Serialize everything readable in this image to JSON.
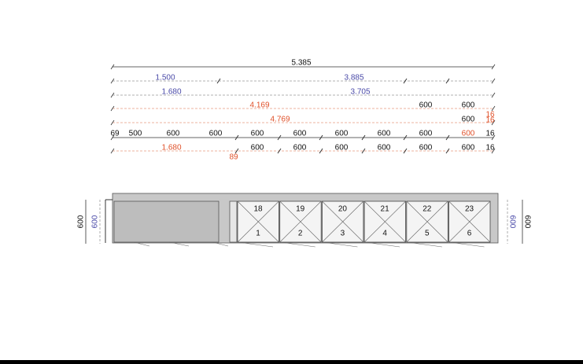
{
  "dimensions": {
    "rows": [
      [
        "5.385"
      ],
      [
        "1.500",
        "3.885"
      ],
      [
        "1.680",
        "3.705"
      ],
      [
        "4.169",
        "600",
        "600",
        "16"
      ],
      [
        "4.769",
        "600",
        "16"
      ],
      [
        "69",
        "500",
        "600",
        "600",
        "600",
        "600",
        "600",
        "600",
        "600",
        "600",
        "16"
      ],
      [
        "1.680",
        "89",
        "600",
        "600",
        "600",
        "600",
        "600",
        "600",
        "16"
      ]
    ]
  },
  "cabinets": {
    "top": [
      "18",
      "19",
      "20",
      "21",
      "22",
      "23"
    ],
    "bottom": [
      "1",
      "2",
      "3",
      "4",
      "5",
      "6"
    ]
  },
  "side": {
    "left": [
      "600",
      "600"
    ],
    "right": [
      "600",
      "600"
    ]
  }
}
